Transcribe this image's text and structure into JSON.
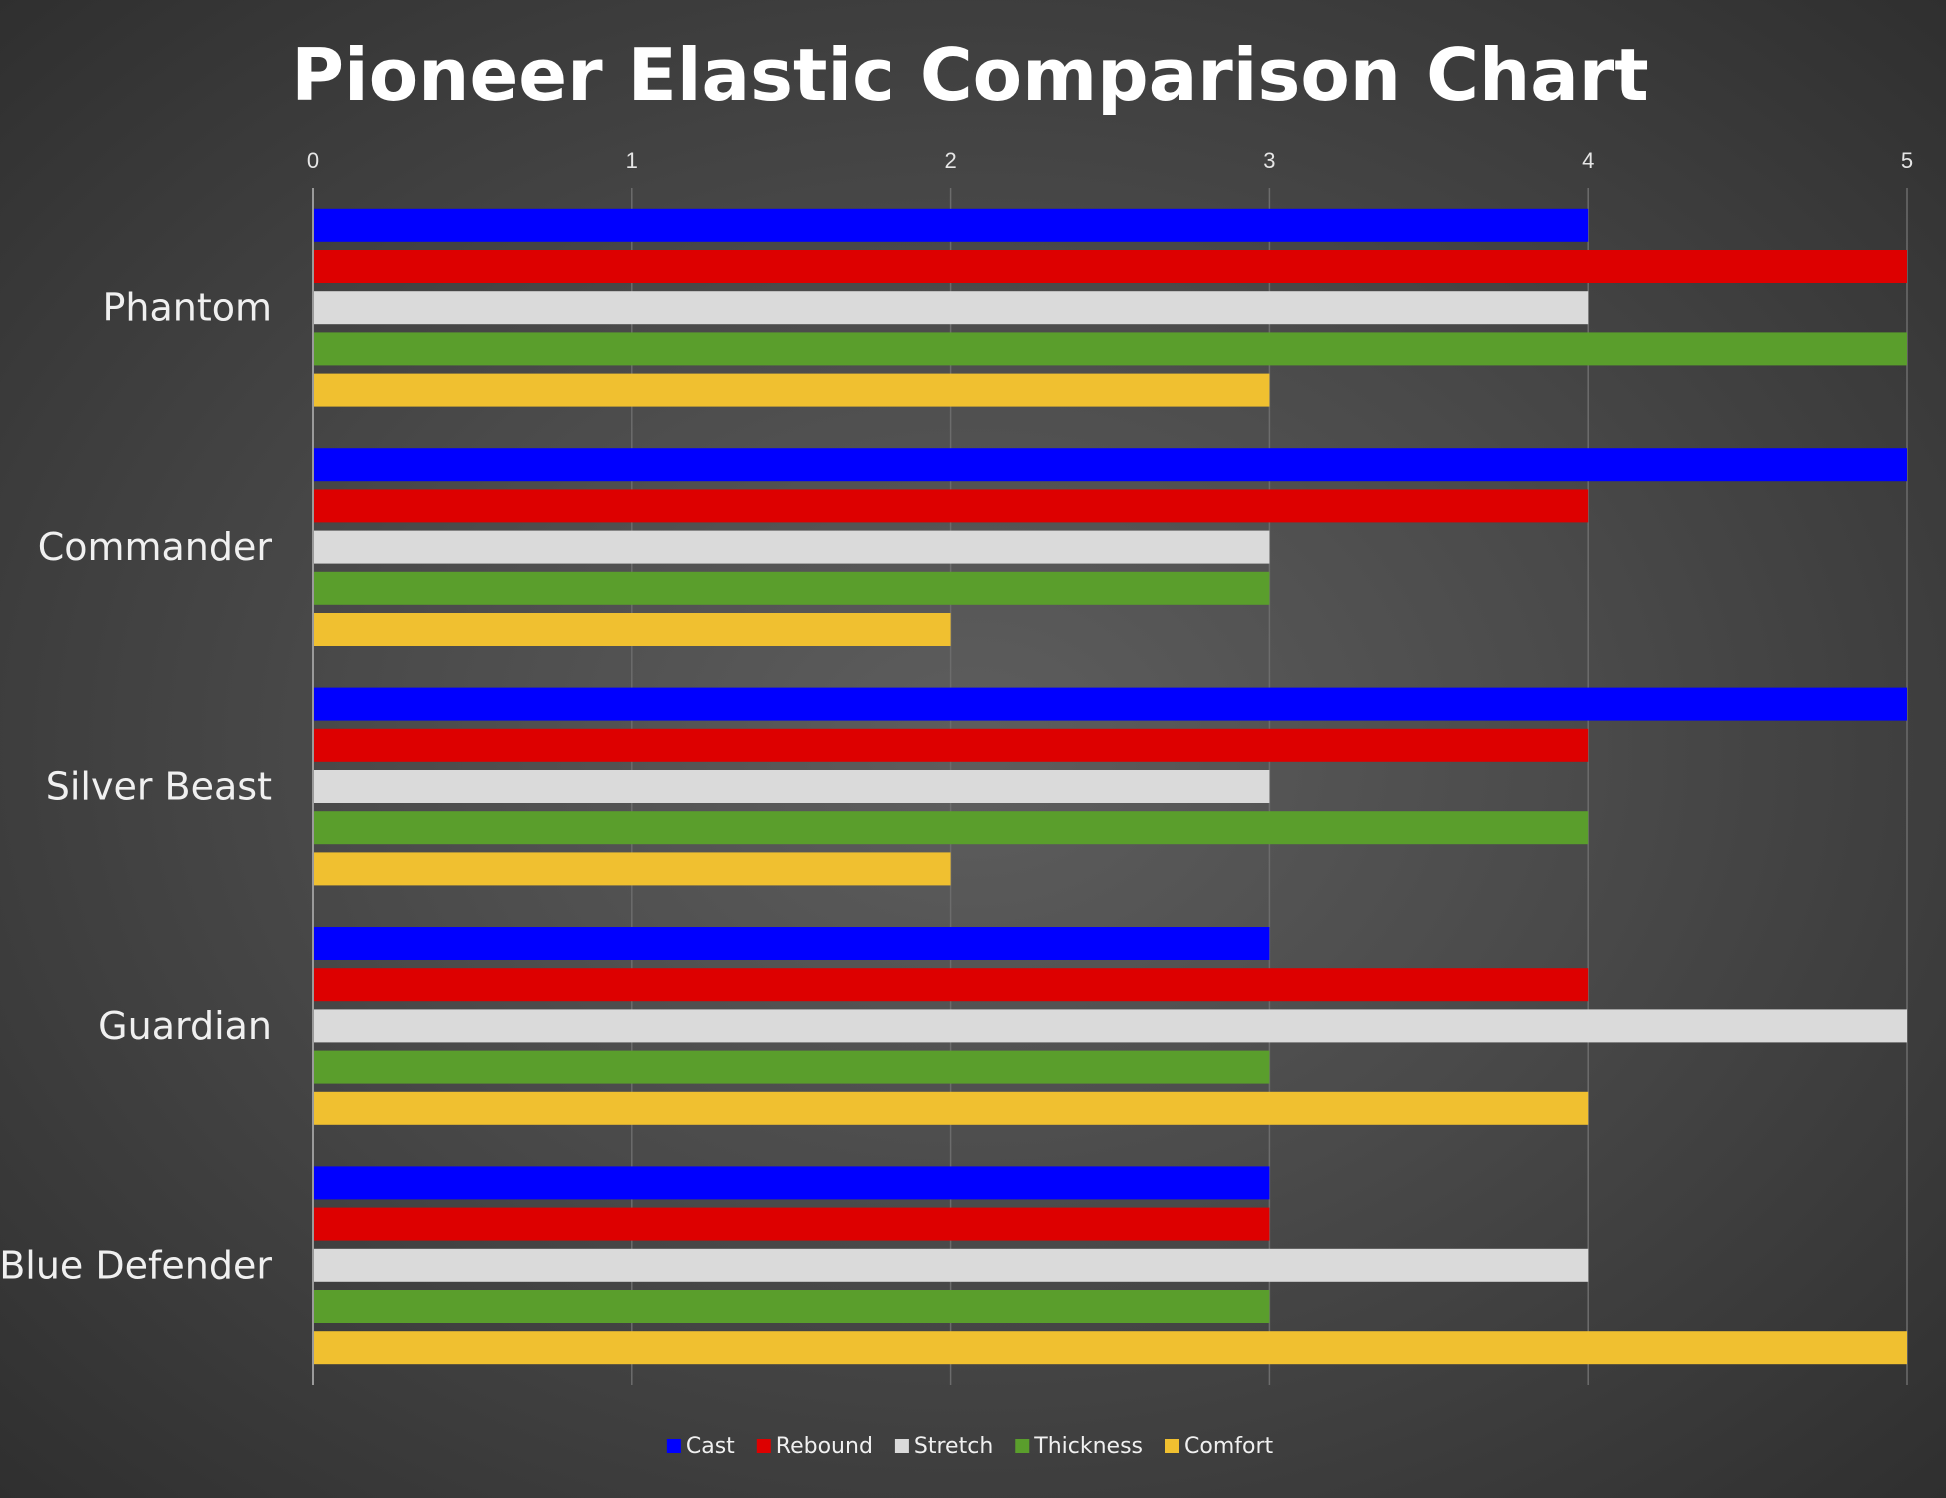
{
  "chart_data": {
    "type": "bar",
    "orientation": "horizontal",
    "title": "Pioneer Elastic Comparison Chart",
    "xlabel": "",
    "ylabel": "",
    "xlim": [
      0,
      5
    ],
    "x_ticks": [
      "0",
      "1",
      "2",
      "3",
      "4",
      "5"
    ],
    "x_axis_position": "top",
    "grid": true,
    "legend_position": "bottom",
    "categories": [
      "Phantom",
      "Commander",
      "Silver Beast",
      "Guardian",
      "Blue Defender"
    ],
    "series": [
      {
        "name": "Cast",
        "color": "#0000ff",
        "values": [
          4,
          5,
          5,
          3,
          3
        ]
      },
      {
        "name": "Rebound",
        "color": "#dd0000",
        "values": [
          5,
          4,
          4,
          4,
          3
        ]
      },
      {
        "name": "Stretch",
        "color": "#dadada",
        "values": [
          4,
          3,
          3,
          5,
          4
        ]
      },
      {
        "name": "Thickness",
        "color": "#5a9e2c",
        "values": [
          5,
          3,
          4,
          3,
          3
        ]
      },
      {
        "name": "Comfort",
        "color": "#f0c030",
        "values": [
          3,
          2,
          2,
          4,
          5
        ]
      }
    ]
  }
}
